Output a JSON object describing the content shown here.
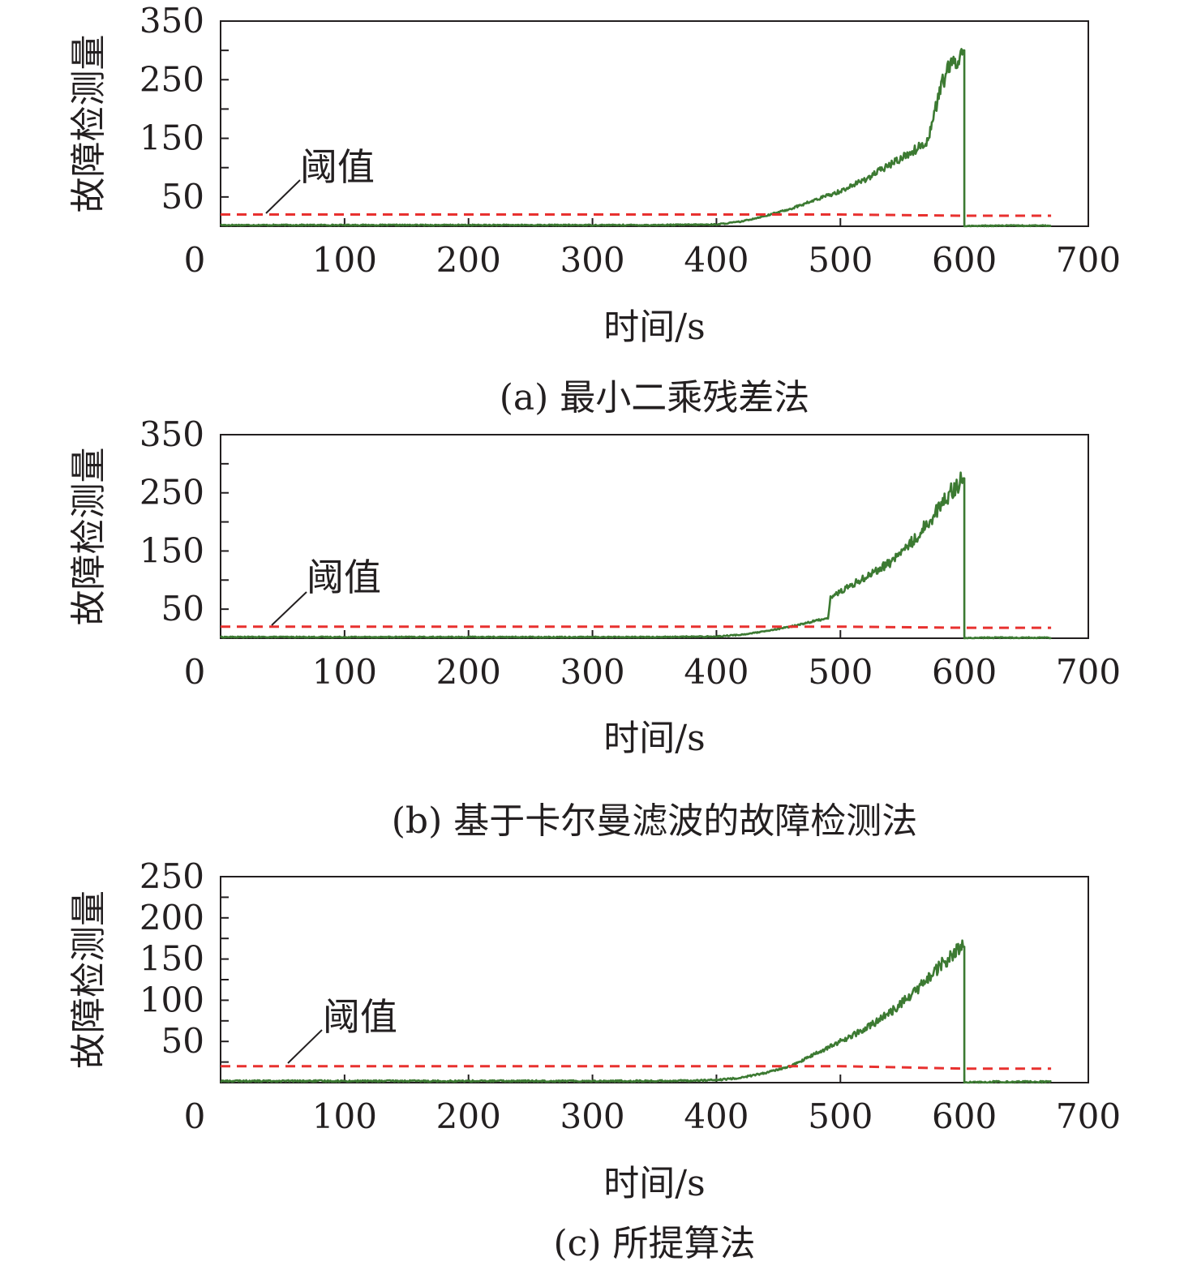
{
  "figure": {
    "colors": {
      "series": "#3c7a32",
      "threshold": "#e8312f",
      "axis": "#231f20"
    }
  },
  "chart_data": [
    {
      "type": "line",
      "caption": "(a) 最小二乘残差法",
      "xlabel": "时间/s",
      "ylabel": "故障检测量",
      "xlim": [
        0,
        700
      ],
      "ylim": [
        0,
        350
      ],
      "x_ticks": [
        0,
        100,
        200,
        300,
        400,
        500,
        600,
        700
      ],
      "y_ticks": [
        50,
        150,
        250,
        350
      ],
      "annotation": "阈值",
      "grid": false,
      "series": [
        {
          "role": "detection",
          "x": [
            0,
            50,
            100,
            150,
            200,
            250,
            300,
            350,
            400,
            420,
            440,
            460,
            480,
            500,
            520,
            540,
            560,
            570,
            575,
            580,
            585,
            590,
            595,
            599,
            600,
            620,
            640,
            670
          ],
          "values": [
            2,
            2,
            2,
            2,
            2,
            2,
            2,
            2,
            3,
            8,
            18,
            30,
            45,
            60,
            80,
            105,
            130,
            145,
            185,
            230,
            260,
            275,
            285,
            300,
            0,
            1,
            1,
            1
          ]
        },
        {
          "role": "threshold",
          "x": [
            0,
            100,
            200,
            300,
            400,
            500,
            600,
            670
          ],
          "values": [
            20,
            20,
            20,
            20,
            20,
            20,
            18,
            18
          ]
        }
      ]
    },
    {
      "type": "line",
      "caption": "(b) 基于卡尔曼滤波的故障检测法",
      "xlabel": "时间/s",
      "ylabel": "故障检测量",
      "xlim": [
        0,
        700
      ],
      "ylim": [
        0,
        350
      ],
      "x_ticks": [
        0,
        100,
        200,
        300,
        400,
        500,
        600,
        700
      ],
      "y_ticks": [
        50,
        150,
        250,
        350
      ],
      "annotation": "阈值",
      "grid": false,
      "series": [
        {
          "role": "detection",
          "x": [
            0,
            50,
            100,
            150,
            200,
            250,
            300,
            350,
            400,
            420,
            440,
            460,
            480,
            490,
            492,
            500,
            520,
            540,
            560,
            580,
            590,
            595,
            599,
            600,
            620,
            640,
            670
          ],
          "values": [
            2,
            2,
            2,
            2,
            2,
            2,
            2,
            2,
            3,
            6,
            12,
            20,
            30,
            35,
            70,
            80,
            105,
            130,
            170,
            225,
            255,
            265,
            275,
            0,
            1,
            1,
            1
          ],
          "noise": 8
        },
        {
          "role": "threshold",
          "x": [
            0,
            100,
            200,
            300,
            400,
            500,
            600,
            670
          ],
          "values": [
            20,
            20,
            20,
            20,
            20,
            20,
            18,
            18
          ]
        }
      ]
    },
    {
      "type": "line",
      "caption": "(c) 所提算法",
      "xlabel": "时间/s",
      "ylabel": "故障检测量",
      "xlim": [
        0,
        700
      ],
      "ylim": [
        0,
        250
      ],
      "x_ticks": [
        0,
        100,
        200,
        300,
        400,
        500,
        600,
        700
      ],
      "y_ticks": [
        50,
        100,
        150,
        200,
        250
      ],
      "annotation": "阈值",
      "grid": false,
      "series": [
        {
          "role": "detection",
          "x": [
            0,
            50,
            100,
            150,
            200,
            250,
            300,
            350,
            400,
            420,
            440,
            460,
            480,
            500,
            520,
            540,
            560,
            580,
            590,
            595,
            599,
            600,
            620,
            640,
            670
          ],
          "values": [
            2,
            2,
            2,
            2,
            2,
            2,
            2,
            2,
            3,
            6,
            12,
            20,
            35,
            50,
            65,
            85,
            110,
            140,
            155,
            160,
            165,
            0,
            1,
            1,
            1
          ]
        },
        {
          "role": "threshold",
          "x": [
            0,
            100,
            200,
            300,
            400,
            500,
            600,
            670
          ],
          "values": [
            20,
            20,
            20,
            20,
            20,
            20,
            17,
            17
          ]
        }
      ]
    }
  ]
}
